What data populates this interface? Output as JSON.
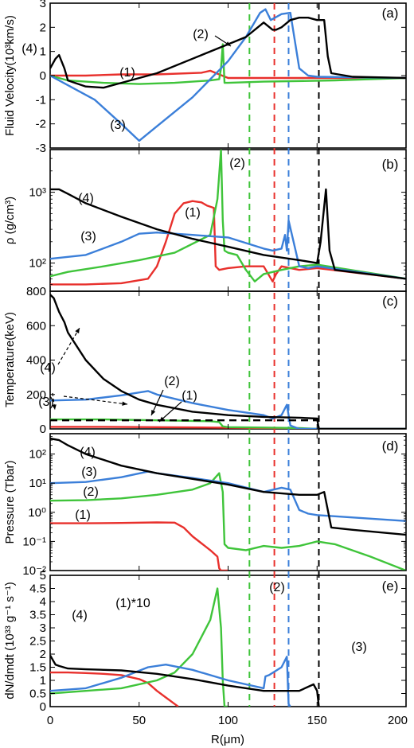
{
  "chart_data": [
    {
      "panel": "(a)",
      "type": "line",
      "ylabel": "Fluid Velocity(10³km/s)",
      "ylim": [
        -3,
        3
      ],
      "yticks": [
        "-3",
        "-2",
        "-1",
        "0",
        "1",
        "2",
        "3"
      ],
      "xlim": [
        0,
        200
      ],
      "series": [
        {
          "name": "(1)",
          "color": "#e8302c",
          "x": [
            0,
            20,
            40,
            60,
            85,
            90,
            95,
            100,
            200
          ],
          "y": [
            0,
            0,
            0.05,
            0.05,
            0.12,
            0.2,
            0.05,
            -0.1,
            -0.1
          ]
        },
        {
          "name": "(2)",
          "color": "#3fc43a",
          "x": [
            0,
            10,
            30,
            50,
            70,
            90,
            95,
            96,
            97,
            98,
            100,
            120,
            160,
            200
          ],
          "y": [
            0,
            -0.2,
            -0.3,
            -0.35,
            -0.3,
            -0.2,
            -0.15,
            0.3,
            1.3,
            -0.3,
            -0.3,
            -0.25,
            -0.2,
            -0.1
          ]
        },
        {
          "name": "(3)",
          "color": "#3b7fd9",
          "x": [
            0,
            25,
            40,
            50,
            60,
            80,
            100,
            110,
            118,
            121,
            124,
            130,
            135,
            140,
            145,
            150,
            200
          ],
          "y": [
            0,
            -1.0,
            -2.0,
            -2.7,
            -2.1,
            -0.9,
            0.6,
            1.6,
            2.6,
            2.75,
            2.3,
            2.55,
            2.6,
            0.3,
            0,
            -0.05,
            -0.1
          ]
        },
        {
          "name": "(4)",
          "color": "#000000",
          "x": [
            0,
            3,
            5,
            8,
            10,
            20,
            30,
            40,
            60,
            80,
            100,
            110,
            120,
            125,
            127,
            130,
            135,
            140,
            145,
            150,
            154,
            156,
            158,
            170,
            200
          ],
          "y": [
            0.3,
            0.7,
            0.85,
            0.3,
            -0.2,
            -0.45,
            -0.5,
            -0.3,
            0.1,
            0.7,
            1.3,
            1.6,
            2.2,
            1.9,
            1.9,
            2.0,
            2.3,
            2.4,
            2.4,
            2.3,
            2.3,
            0.8,
            0.1,
            -0.05,
            -0.1
          ]
        }
      ],
      "annotations": [
        "(1)",
        "(2)",
        "(3)",
        "(4)"
      ]
    },
    {
      "panel": "(b)",
      "type": "line",
      "yscale": "log",
      "ylabel": "ρ (g/cm³)",
      "ylim": [
        40,
        4000
      ],
      "yticks": [
        "10²",
        "10³"
      ],
      "xlim": [
        0,
        200
      ],
      "series": [
        {
          "name": "(1)",
          "color": "#e8302c",
          "x": [
            0,
            20,
            40,
            55,
            60,
            65,
            70,
            75,
            80,
            85,
            88,
            92,
            93,
            95,
            100,
            110,
            120,
            125,
            127,
            130,
            140,
            150,
            200
          ],
          "y": [
            50,
            50,
            52,
            60,
            90,
            200,
            500,
            700,
            750,
            720,
            650,
            600,
            90,
            80,
            85,
            90,
            90,
            55,
            70,
            90,
            80,
            85,
            60
          ]
        },
        {
          "name": "(2)",
          "color": "#3fc43a",
          "x": [
            0,
            10,
            30,
            50,
            70,
            90,
            94,
            96,
            97,
            98,
            100,
            105,
            110,
            115,
            120,
            130,
            140,
            150,
            200
          ],
          "y": [
            65,
            75,
            90,
            110,
            140,
            250,
            800,
            4000,
            400,
            150,
            140,
            130,
            80,
            55,
            70,
            80,
            90,
            95,
            60
          ]
        },
        {
          "name": "(3)",
          "color": "#3b7fd9",
          "x": [
            0,
            20,
            40,
            50,
            60,
            80,
            100,
            120,
            125,
            130,
            132,
            133,
            134,
            140,
            145,
            150,
            200
          ],
          "y": [
            115,
            130,
            200,
            260,
            270,
            250,
            230,
            160,
            150,
            160,
            250,
            150,
            400,
            90,
            85,
            90,
            60
          ]
        },
        {
          "name": "(4)",
          "color": "#000000",
          "x": [
            0,
            5,
            10,
            20,
            40,
            60,
            80,
            100,
            120,
            140,
            150,
            152,
            155,
            157,
            160,
            200
          ],
          "y": [
            1100,
            1100,
            950,
            700,
            450,
            300,
            220,
            170,
            130,
            110,
            100,
            200,
            1100,
            150,
            80,
            60
          ]
        }
      ],
      "annotations": [
        "(1)",
        "(2)",
        "(3)",
        "(4)"
      ]
    },
    {
      "panel": "(c)",
      "type": "line",
      "ylabel": "Temperature(keV)",
      "ylim": [
        0,
        800
      ],
      "yticks": [
        "0",
        "200",
        "400",
        "600",
        "800"
      ],
      "xlim": [
        0,
        200
      ],
      "series": [
        {
          "name": "(1)",
          "color": "#e8302c",
          "x": [
            0,
            30,
            60,
            90,
            110,
            130,
            135,
            200
          ],
          "y": [
            12,
            12,
            10,
            8,
            6,
            4,
            0,
            0
          ]
        },
        {
          "name": "(2)",
          "color": "#3fc43a",
          "x": [
            0,
            30,
            60,
            90,
            95,
            97,
            100,
            120,
            140,
            150,
            200
          ],
          "y": [
            55,
            55,
            50,
            45,
            40,
            15,
            10,
            8,
            5,
            0,
            0
          ]
        },
        {
          "name": "(3)",
          "color": "#3b7fd9",
          "x": [
            0,
            20,
            40,
            55,
            60,
            80,
            100,
            120,
            125,
            130,
            133,
            135,
            140,
            200
          ],
          "y": [
            165,
            170,
            195,
            220,
            200,
            150,
            110,
            80,
            60,
            80,
            140,
            20,
            0,
            0
          ]
        },
        {
          "name": "(4)",
          "color": "#000000",
          "x": [
            0,
            2,
            5,
            8,
            10,
            15,
            20,
            30,
            40,
            50,
            60,
            80,
            100,
            120,
            140,
            150,
            151,
            200
          ],
          "y": [
            780,
            760,
            680,
            620,
            560,
            480,
            400,
            290,
            220,
            170,
            140,
            100,
            80,
            70,
            65,
            60,
            0,
            0
          ]
        },
        {
          "name": "",
          "color": "#000000",
          "dash": true,
          "x": [
            0,
            150
          ],
          "y": [
            50,
            50
          ]
        }
      ],
      "annotations": [
        "(4)",
        "(3)",
        "(2)",
        "(1)"
      ]
    },
    {
      "panel": "(d)",
      "type": "line",
      "yscale": "log",
      "ylabel": "Pressure (Tbar)",
      "ylim": [
        0.01,
        500
      ],
      "yticks": [
        "10⁻²",
        "10⁻¹",
        "10⁰",
        "10¹",
        "10²"
      ],
      "xlim": [
        0,
        200
      ],
      "series": [
        {
          "name": "(1)",
          "color": "#e8302c",
          "x": [
            0,
            20,
            40,
            60,
            70,
            75,
            80,
            90,
            94,
            95,
            96,
            100
          ],
          "y": [
            0.42,
            0.42,
            0.43,
            0.45,
            0.44,
            0.3,
            0.15,
            0.05,
            0.03,
            0.012,
            0.01,
            0.01
          ]
        },
        {
          "name": "(2)",
          "color": "#3fc43a",
          "x": [
            0,
            20,
            40,
            60,
            80,
            90,
            95,
            97,
            98,
            100,
            110,
            120,
            130,
            140,
            150,
            160,
            180,
            200
          ],
          "y": [
            2.5,
            2.6,
            3,
            4,
            6,
            10,
            22,
            5,
            0.08,
            0.06,
            0.05,
            0.07,
            0.06,
            0.07,
            0.1,
            0.08,
            0.03,
            0.01
          ]
        },
        {
          "name": "(3)",
          "color": "#3b7fd9",
          "x": [
            0,
            20,
            40,
            55,
            60,
            80,
            100,
            120,
            130,
            135,
            140,
            145,
            150,
            200
          ],
          "y": [
            10,
            11,
            16,
            25,
            22,
            15,
            10,
            5,
            7,
            6,
            1.2,
            0.9,
            0.8,
            0.5
          ]
        },
        {
          "name": "(4)",
          "color": "#000000",
          "x": [
            0,
            5,
            10,
            20,
            40,
            60,
            80,
            100,
            120,
            140,
            150,
            154,
            158,
            170,
            200
          ],
          "y": [
            340,
            300,
            200,
            100,
            40,
            22,
            14,
            9,
            5,
            4,
            4,
            5,
            0.3,
            0.25,
            0.17
          ]
        }
      ],
      "annotations": [
        "(4)",
        "(3)",
        "(2)",
        "(1)"
      ]
    },
    {
      "panel": "(e)",
      "type": "line",
      "ylabel": "dN/dmdt (10³³ g⁻¹ s⁻¹)",
      "ylim": [
        0,
        5
      ],
      "yticks": [
        "0",
        "0.5",
        "1",
        "1.5",
        "2",
        "2.5",
        "3",
        "3.5",
        "4",
        "4.5",
        "5"
      ],
      "xlim": [
        0,
        200
      ],
      "xlabel": "R(μm)",
      "xticks": [
        "0",
        "50",
        "100",
        "150",
        "200"
      ],
      "series": [
        {
          "name": "(1)*10",
          "color": "#e8302c",
          "x": [
            0,
            10,
            20,
            30,
            40,
            50,
            55,
            60,
            65,
            70,
            72
          ],
          "y": [
            1.3,
            1.3,
            1.28,
            1.25,
            1.2,
            1.05,
            0.9,
            0.6,
            0.35,
            0.1,
            0
          ]
        },
        {
          "name": "(2)",
          "color": "#3fc43a",
          "x": [
            0,
            20,
            40,
            60,
            70,
            80,
            90,
            94,
            96,
            97,
            98,
            100
          ],
          "y": [
            0.5,
            0.6,
            0.7,
            1.0,
            1.3,
            2.0,
            3.3,
            4.5,
            3.0,
            1.0,
            0,
            0
          ]
        },
        {
          "name": "(3)",
          "color": "#3b7fd9",
          "x": [
            0,
            20,
            40,
            55,
            65,
            80,
            100,
            120,
            121,
            123,
            130,
            133,
            134,
            135
          ],
          "y": [
            0.6,
            0.7,
            1.1,
            1.5,
            1.6,
            1.4,
            1.0,
            0.7,
            1.15,
            1.2,
            1.5,
            1.9,
            0.1,
            0
          ]
        },
        {
          "name": "(4)",
          "color": "#000000",
          "x": [
            0,
            3,
            5,
            10,
            20,
            40,
            60,
            80,
            100,
            120,
            140,
            148,
            150,
            151
          ],
          "y": [
            1.95,
            1.6,
            1.55,
            1.45,
            1.42,
            1.38,
            1.25,
            1.05,
            0.8,
            0.6,
            0.6,
            0.85,
            0.6,
            0
          ]
        }
      ],
      "annotations": [
        "(4)",
        "(1)*10",
        "(2)",
        "(3)"
      ]
    }
  ],
  "vertical_lines": [
    {
      "x": 112,
      "color": "#3fc43a"
    },
    {
      "x": 126,
      "color": "#e8302c"
    },
    {
      "x": 134,
      "color": "#3b7fd9"
    },
    {
      "x": 151,
      "color": "#000000"
    }
  ]
}
